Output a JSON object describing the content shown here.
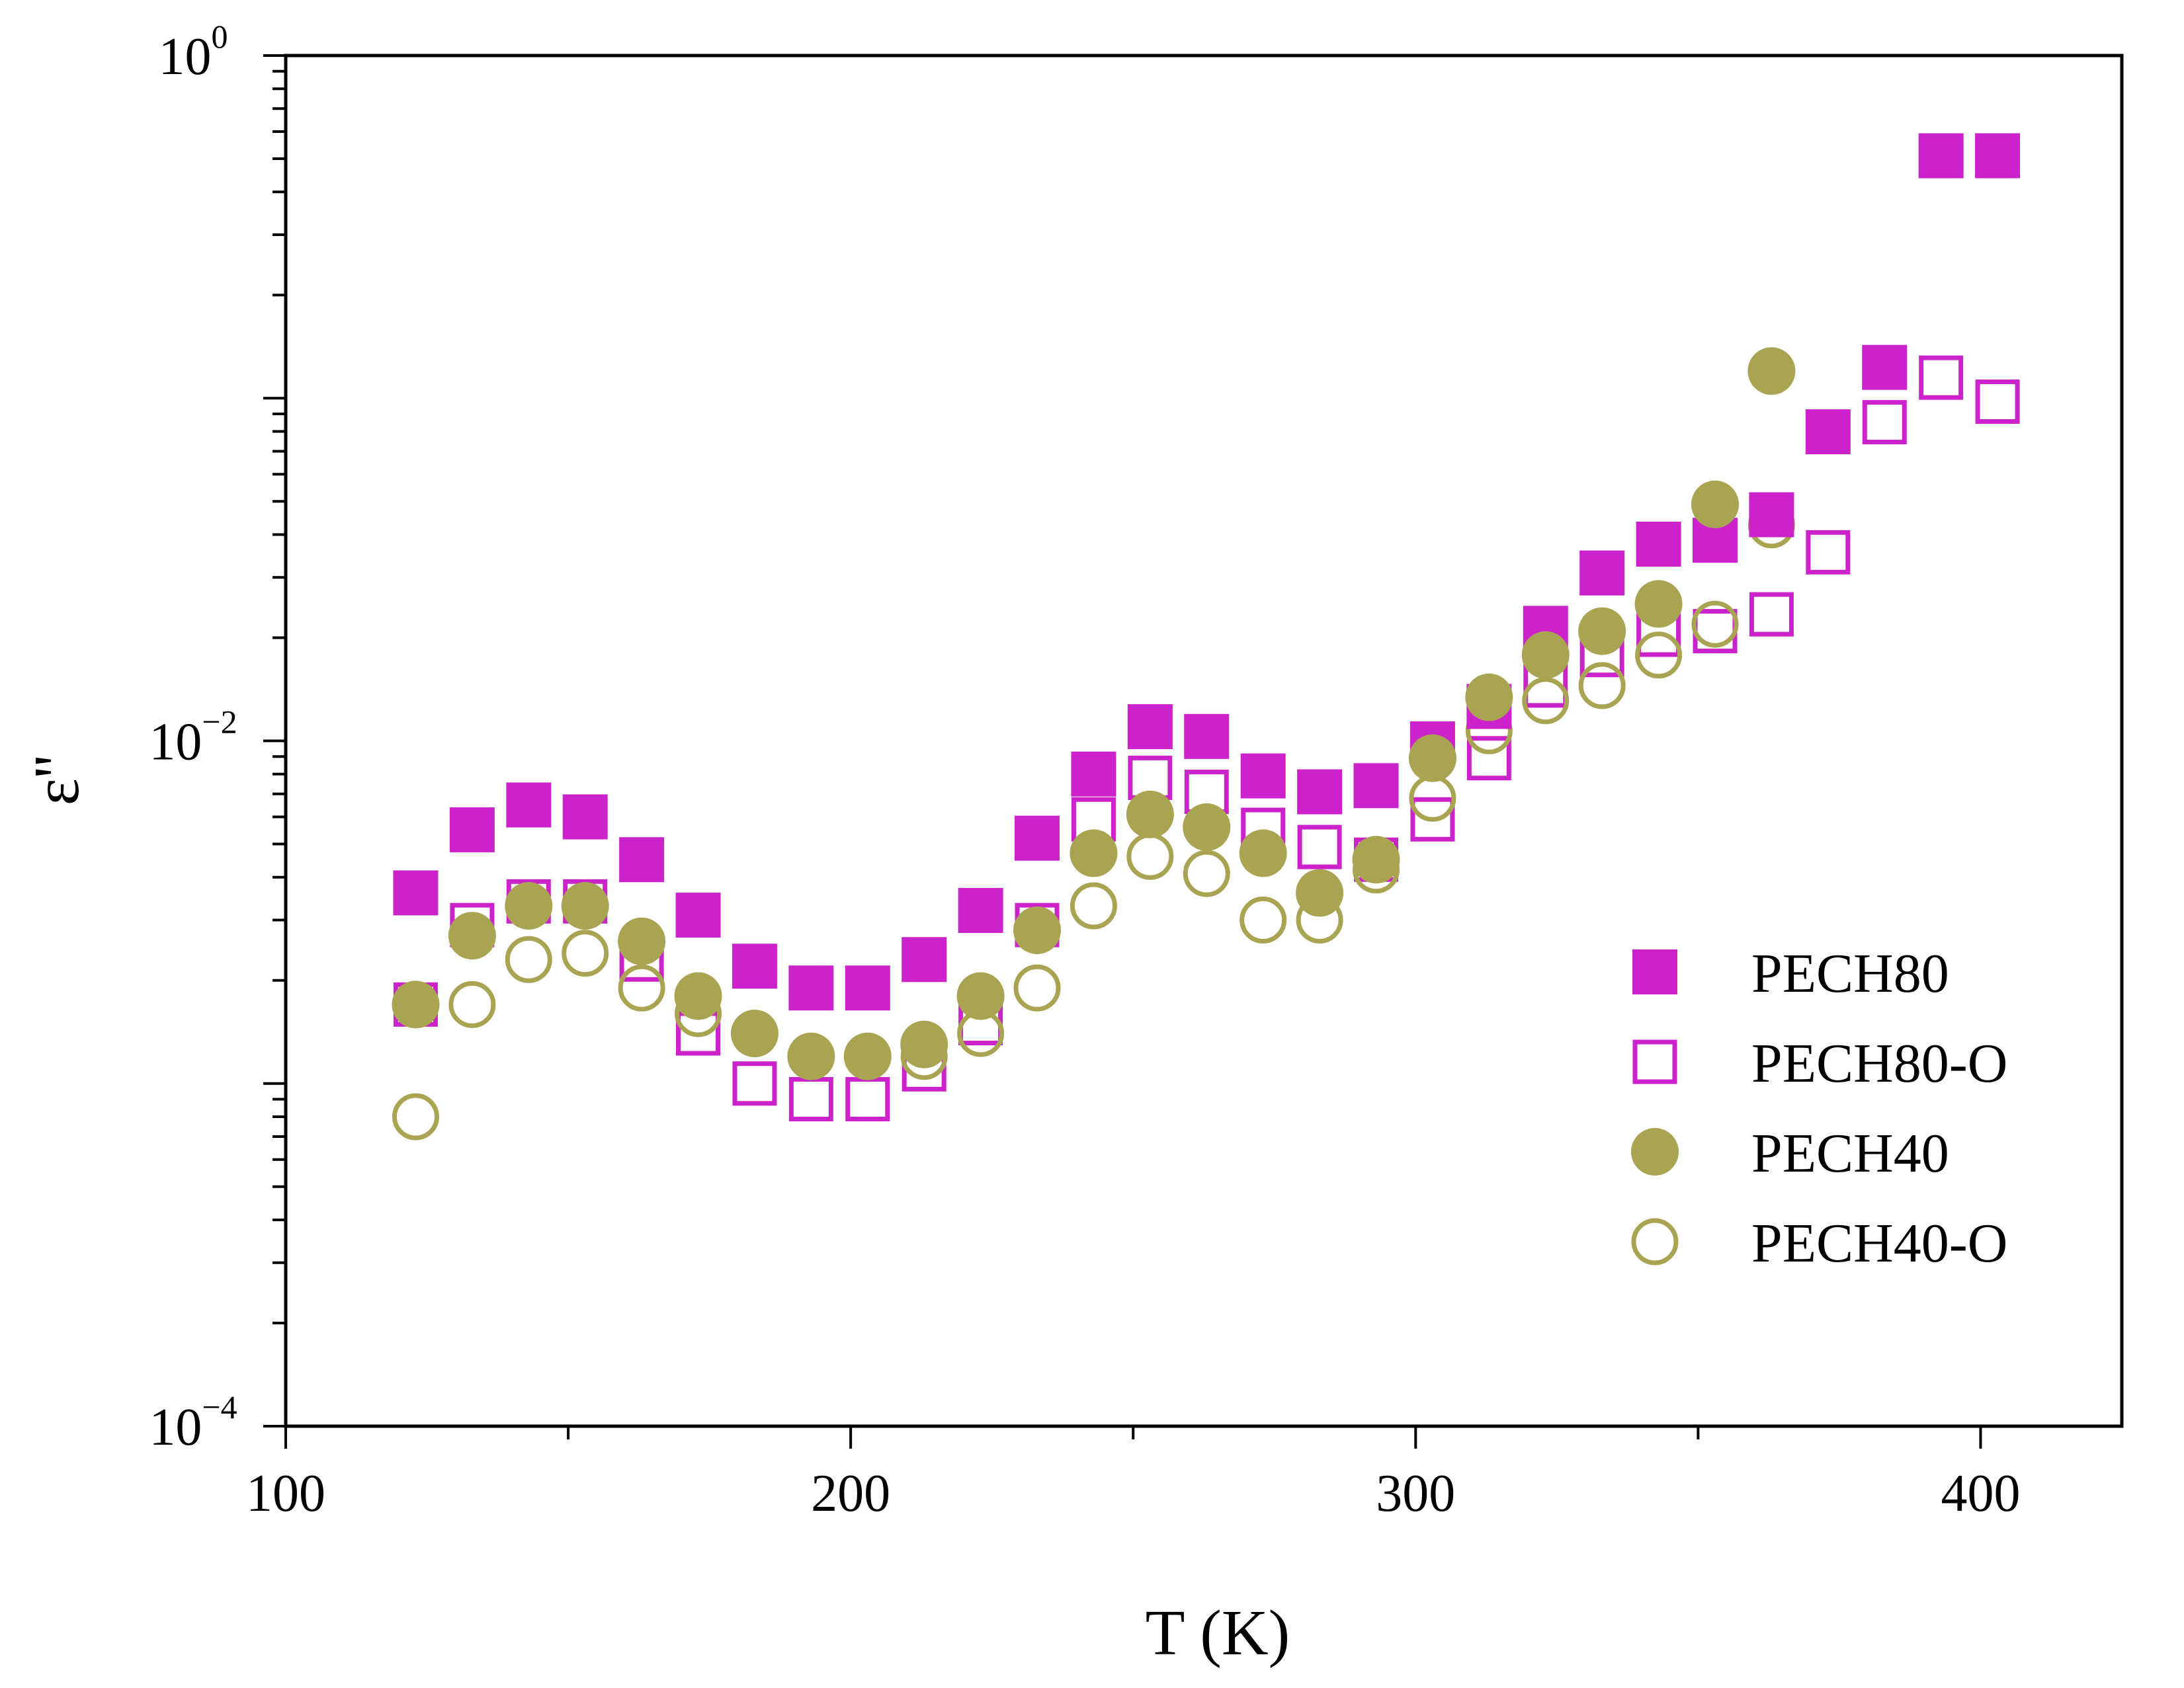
{
  "chart_data": {
    "type": "scatter",
    "title": "",
    "xlabel": "T (K)",
    "ylabel": "ε''",
    "xlim": [
      100,
      425
    ],
    "ylim_log10": [
      -4,
      0
    ],
    "yscale": "log",
    "x_ticks": [
      100,
      200,
      300,
      400
    ],
    "y_ticks": [
      {
        "base": "10",
        "exp": "0"
      },
      {
        "base": "10",
        "exp": "−2"
      },
      {
        "base": "10",
        "exp": "−4"
      }
    ],
    "legend_position": "lower-right",
    "series": [
      {
        "name": "PECH80",
        "marker": "square",
        "filled": true,
        "color": "#cc22cc",
        "points": [
          [
            123,
            0.0036
          ],
          [
            133,
            0.0055
          ],
          [
            143,
            0.0065
          ],
          [
            153,
            0.006
          ],
          [
            163,
            0.0045
          ],
          [
            173,
            0.0031
          ],
          [
            183,
            0.0022
          ],
          [
            193,
            0.0019
          ],
          [
            203,
            0.0019
          ],
          [
            213,
            0.0023
          ],
          [
            223,
            0.0032
          ],
          [
            233,
            0.0052
          ],
          [
            243,
            0.008
          ],
          [
            253,
            0.011
          ],
          [
            263,
            0.0103
          ],
          [
            273,
            0.0079
          ],
          [
            283,
            0.0071
          ],
          [
            293,
            0.0074
          ],
          [
            303,
            0.0098
          ],
          [
            313,
            0.0126
          ],
          [
            323,
            0.0213
          ],
          [
            333,
            0.0309
          ],
          [
            343,
            0.0375
          ],
          [
            353,
            0.0385
          ],
          [
            363,
            0.0457
          ],
          [
            373,
            0.0798
          ],
          [
            383,
            0.123
          ],
          [
            393,
            0.51
          ],
          [
            403,
            0.51
          ]
        ]
      },
      {
        "name": "PECH80-O",
        "marker": "square",
        "filled": false,
        "color": "#cc22cc",
        "points": [
          [
            123,
            0.0017
          ],
          [
            133,
            0.0029
          ],
          [
            143,
            0.0034
          ],
          [
            153,
            0.0034
          ],
          [
            163,
            0.0023
          ],
          [
            173,
            0.0014
          ],
          [
            183,
            0.001
          ],
          [
            193,
            0.0009
          ],
          [
            203,
            0.0009
          ],
          [
            213,
            0.0011
          ],
          [
            223,
            0.0015
          ],
          [
            233,
            0.0029
          ],
          [
            243,
            0.0059
          ],
          [
            253,
            0.0078
          ],
          [
            263,
            0.0071
          ],
          [
            273,
            0.0055
          ],
          [
            283,
            0.0049
          ],
          [
            293,
            0.0045
          ],
          [
            303,
            0.0059
          ],
          [
            313,
            0.0089
          ],
          [
            323,
            0.0145
          ],
          [
            333,
            0.0178
          ],
          [
            343,
            0.0204
          ],
          [
            353,
            0.0209
          ],
          [
            363,
            0.0234
          ],
          [
            373,
            0.0355
          ],
          [
            383,
            0.0851
          ],
          [
            393,
            0.1148
          ],
          [
            403,
            0.0977
          ]
        ]
      },
      {
        "name": "PECH40",
        "marker": "circle",
        "filled": true,
        "color": "#a9a451",
        "points": [
          [
            123,
            0.0017
          ],
          [
            133,
            0.0027
          ],
          [
            143,
            0.0033
          ],
          [
            153,
            0.0033
          ],
          [
            163,
            0.0026
          ],
          [
            173,
            0.0018
          ],
          [
            183,
            0.0014
          ],
          [
            193,
            0.0012
          ],
          [
            203,
            0.0012
          ],
          [
            213,
            0.0013
          ],
          [
            223,
            0.0018
          ],
          [
            233,
            0.0028
          ],
          [
            243,
            0.0047
          ],
          [
            253,
            0.0061
          ],
          [
            263,
            0.0056
          ],
          [
            273,
            0.0047
          ],
          [
            283,
            0.0036
          ],
          [
            293,
            0.0045
          ],
          [
            303,
            0.0089
          ],
          [
            313,
            0.0134
          ],
          [
            323,
            0.0178
          ],
          [
            333,
            0.0209
          ],
          [
            343,
            0.0251
          ],
          [
            353,
            0.049
          ],
          [
            363,
            0.12
          ]
        ]
      },
      {
        "name": "PECH40-O",
        "marker": "circle",
        "filled": false,
        "color": "#a9a451",
        "points": [
          [
            123,
            0.0008
          ],
          [
            133,
            0.0017
          ],
          [
            143,
            0.0023
          ],
          [
            153,
            0.0024
          ],
          [
            163,
            0.0019
          ],
          [
            173,
            0.0016
          ],
          [
            183,
            0.0014
          ],
          [
            193,
            0.0012
          ],
          [
            203,
            0.0012
          ],
          [
            213,
            0.0012
          ],
          [
            223,
            0.0014
          ],
          [
            233,
            0.0019
          ],
          [
            243,
            0.0033
          ],
          [
            253,
            0.0046
          ],
          [
            263,
            0.0041
          ],
          [
            273,
            0.003
          ],
          [
            283,
            0.003
          ],
          [
            293,
            0.0042
          ],
          [
            303,
            0.0068
          ],
          [
            313,
            0.0107
          ],
          [
            323,
            0.0131
          ],
          [
            333,
            0.0145
          ],
          [
            343,
            0.0178
          ],
          [
            353,
            0.0219
          ],
          [
            363,
            0.0427
          ]
        ]
      }
    ]
  }
}
